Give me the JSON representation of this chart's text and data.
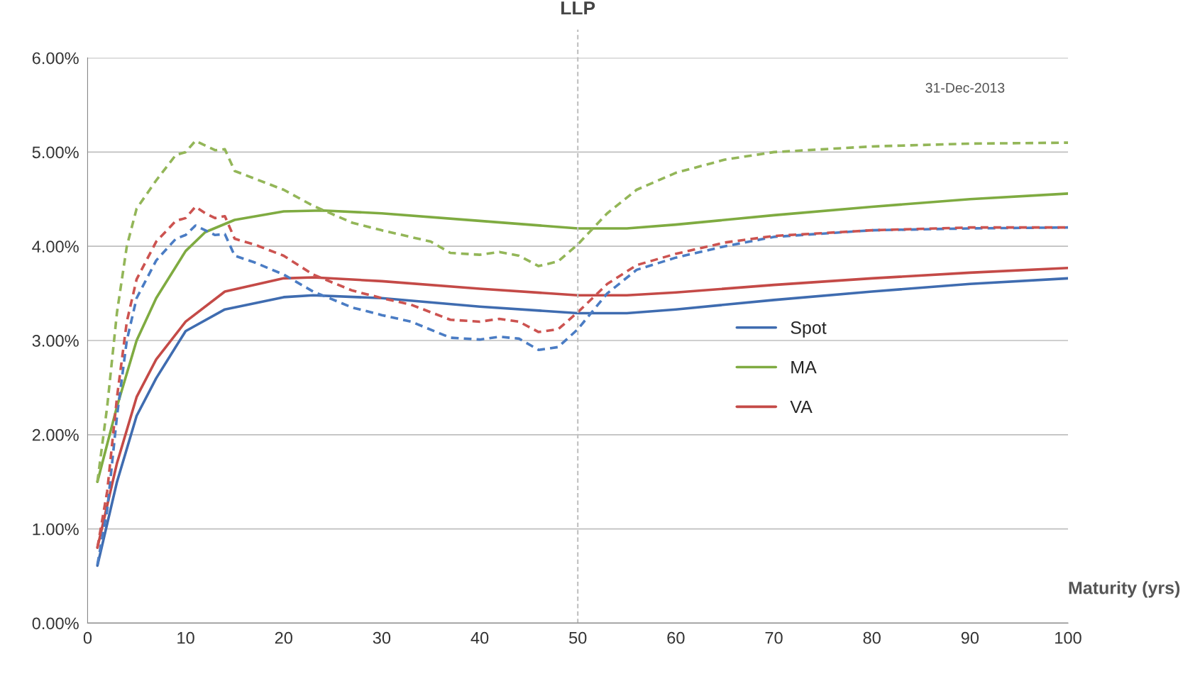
{
  "chart_data": {
    "type": "line",
    "xlabel": "Maturity (yrs)",
    "xlim": [
      0,
      100
    ],
    "xticks": [
      0,
      10,
      20,
      30,
      40,
      50,
      60,
      70,
      80,
      90,
      100
    ],
    "ylim": [
      0,
      6
    ],
    "yticks": [
      {
        "value": 0,
        "label": "0.00%"
      },
      {
        "value": 1,
        "label": "1.00%"
      },
      {
        "value": 2,
        "label": "2.00%"
      },
      {
        "value": 3,
        "label": "3.00%"
      },
      {
        "value": 4,
        "label": "4.00%"
      },
      {
        "value": 5,
        "label": "5.00%"
      },
      {
        "value": 6,
        "label": "6.00%"
      }
    ],
    "grid": "y",
    "legend": "right",
    "marker": "none",
    "ref_lines": [
      {
        "axis": "x",
        "value": 50,
        "label": "LLP",
        "color": "#bfbfbf",
        "line_style": "dashed"
      }
    ],
    "annotations": [
      "31-Dec-2013"
    ],
    "series": [
      {
        "name": "Spot",
        "color": "#3f6cb0",
        "line_style": "solid",
        "x": [
          1,
          3,
          5,
          7,
          10,
          14,
          20,
          23,
          30,
          40,
          50,
          55,
          60,
          70,
          80,
          90,
          100
        ],
        "values": [
          0.61,
          1.5,
          2.2,
          2.6,
          3.1,
          3.33,
          3.46,
          3.48,
          3.45,
          3.36,
          3.29,
          3.29,
          3.33,
          3.43,
          3.52,
          3.6,
          3.66
        ]
      },
      {
        "name": "MA",
        "color": "#7fab41",
        "line_style": "solid",
        "x": [
          1,
          3,
          5,
          7,
          10,
          12,
          15,
          20,
          24,
          30,
          40,
          50,
          55,
          60,
          70,
          80,
          90,
          100
        ],
        "values": [
          1.5,
          2.3,
          3.0,
          3.45,
          3.95,
          4.15,
          4.28,
          4.37,
          4.38,
          4.35,
          4.27,
          4.19,
          4.19,
          4.23,
          4.33,
          4.42,
          4.5,
          4.56
        ]
      },
      {
        "name": "VA",
        "color": "#c44a47",
        "line_style": "solid",
        "x": [
          1,
          3,
          5,
          7,
          10,
          14,
          20,
          23,
          30,
          40,
          50,
          55,
          60,
          70,
          80,
          90,
          100
        ],
        "values": [
          0.8,
          1.7,
          2.4,
          2.8,
          3.2,
          3.52,
          3.66,
          3.67,
          3.63,
          3.55,
          3.48,
          3.48,
          3.51,
          3.59,
          3.66,
          3.72,
          3.77
        ]
      },
      {
        "color": "#93b658",
        "line_style": "dashed",
        "x": [
          1,
          2,
          3,
          4,
          5,
          7,
          9,
          10,
          11,
          12,
          13,
          14,
          15,
          17,
          20,
          23,
          27,
          30,
          35,
          37,
          40,
          42,
          44,
          46,
          48,
          50,
          53,
          56,
          60,
          65,
          70,
          80,
          90,
          100
        ],
        "values": [
          1.5,
          2.3,
          3.3,
          4.0,
          4.4,
          4.7,
          4.97,
          5.0,
          5.12,
          5.07,
          5.02,
          5.03,
          4.8,
          4.72,
          4.6,
          4.43,
          4.25,
          4.17,
          4.05,
          3.93,
          3.91,
          3.94,
          3.9,
          3.79,
          3.84,
          4.02,
          4.35,
          4.6,
          4.78,
          4.92,
          5.0,
          5.06,
          5.09,
          5.1
        ]
      },
      {
        "color": "#4a7cc4",
        "line_style": "dashed",
        "x": [
          1,
          2,
          3,
          4,
          5,
          7,
          9,
          10,
          11,
          12,
          13,
          14,
          15,
          17,
          20,
          23,
          27,
          30,
          33,
          37,
          40,
          42,
          44,
          46,
          48,
          50,
          53,
          56,
          60,
          65,
          70,
          80,
          90,
          100
        ],
        "values": [
          0.62,
          1.2,
          2.2,
          3.0,
          3.45,
          3.85,
          4.08,
          4.12,
          4.22,
          4.17,
          4.12,
          4.13,
          3.9,
          3.83,
          3.7,
          3.52,
          3.35,
          3.27,
          3.2,
          3.03,
          3.01,
          3.04,
          3.02,
          2.9,
          2.93,
          3.12,
          3.5,
          3.75,
          3.88,
          4.0,
          4.1,
          4.17,
          4.19,
          4.2
        ]
      },
      {
        "color": "#cc5350",
        "line_style": "dashed",
        "x": [
          1,
          2,
          3,
          4,
          5,
          7,
          9,
          10,
          11,
          12,
          13,
          14,
          15,
          17,
          20,
          23,
          27,
          30,
          33,
          37,
          40,
          42,
          44,
          46,
          48,
          50,
          53,
          56,
          60,
          65,
          70,
          80,
          90,
          100
        ],
        "values": [
          0.8,
          1.4,
          2.4,
          3.2,
          3.65,
          4.05,
          4.27,
          4.3,
          4.42,
          4.35,
          4.3,
          4.32,
          4.08,
          4.02,
          3.9,
          3.7,
          3.53,
          3.45,
          3.38,
          3.22,
          3.2,
          3.23,
          3.2,
          3.09,
          3.12,
          3.3,
          3.6,
          3.8,
          3.92,
          4.04,
          4.11,
          4.17,
          4.2,
          4.2
        ]
      }
    ]
  }
}
